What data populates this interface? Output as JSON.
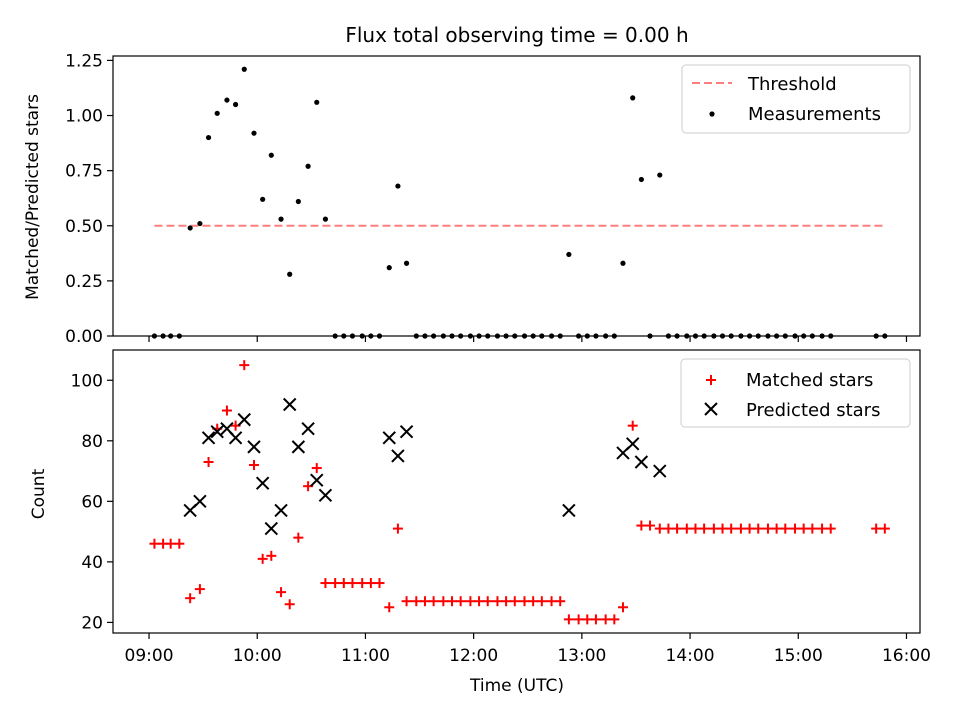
{
  "chart_data": [
    {
      "type": "scatter",
      "title": "Flux total observing time = 0.00 h",
      "xlabel": "",
      "ylabel": "Matched/Predicted stars",
      "xlim": [
        8.667,
        16.125
      ],
      "ylim": [
        0.0,
        1.27
      ],
      "yticks": [
        0.0,
        0.25,
        0.5,
        0.75,
        1.0,
        1.25
      ],
      "ytick_labels": [
        "0.00",
        "0.25",
        "0.50",
        "0.75",
        "1.00",
        "1.25"
      ],
      "threshold": {
        "name": "Threshold",
        "value": 0.5,
        "x_range": [
          9.05,
          15.8
        ],
        "color": "#ff7f7f"
      },
      "legend": [
        "Threshold",
        "Measurements"
      ],
      "legend_position": "top-right",
      "series": [
        {
          "name": "Measurements",
          "color": "#000000",
          "x": [
            9.05,
            9.13,
            9.2,
            9.28,
            9.38,
            9.47,
            9.55,
            9.63,
            9.72,
            9.8,
            9.88,
            9.97,
            10.05,
            10.13,
            10.22,
            10.3,
            10.38,
            10.47,
            10.55,
            10.63,
            10.72,
            10.8,
            10.88,
            10.97,
            11.05,
            11.13,
            11.22,
            11.3,
            11.38,
            11.47,
            11.55,
            11.63,
            11.72,
            11.8,
            11.88,
            11.97,
            12.05,
            12.13,
            12.22,
            12.3,
            12.38,
            12.47,
            12.55,
            12.63,
            12.72,
            12.8,
            12.88,
            12.97,
            13.05,
            13.13,
            13.22,
            13.3,
            13.38,
            13.47,
            13.55,
            13.63,
            13.72,
            13.8,
            13.88,
            13.97,
            14.05,
            14.13,
            14.22,
            14.3,
            14.38,
            14.47,
            14.55,
            14.63,
            14.72,
            14.8,
            14.88,
            14.97,
            15.05,
            15.13,
            15.22,
            15.3,
            15.72,
            15.8
          ],
          "y": [
            0.0,
            0.0,
            0.0,
            0.0,
            0.49,
            0.51,
            0.9,
            1.01,
            1.07,
            1.05,
            1.21,
            0.92,
            0.62,
            0.82,
            0.53,
            0.28,
            0.61,
            0.77,
            1.06,
            0.53,
            0.0,
            0.0,
            0.0,
            0.0,
            0.0,
            0.0,
            0.31,
            0.68,
            0.33,
            0.0,
            0.0,
            0.0,
            0.0,
            0.0,
            0.0,
            0.0,
            0.0,
            0.0,
            0.0,
            0.0,
            0.0,
            0.0,
            0.0,
            0.0,
            0.0,
            0.0,
            0.37,
            0.0,
            0.0,
            0.0,
            0.0,
            0.0,
            0.33,
            1.08,
            0.71,
            0.0,
            0.73,
            0.0,
            0.0,
            0.0,
            0.0,
            0.0,
            0.0,
            0.0,
            0.0,
            0.0,
            0.0,
            0.0,
            0.0,
            0.0,
            0.0,
            0.0,
            0.0,
            0.0,
            0.0,
            0.0,
            0.0,
            0.0
          ]
        }
      ]
    },
    {
      "type": "scatter",
      "title": "",
      "xlabel": "Time (UTC)",
      "ylabel": "Count",
      "xlim": [
        8.667,
        16.125
      ],
      "ylim": [
        16.5,
        110
      ],
      "yticks": [
        20,
        40,
        60,
        80,
        100
      ],
      "ytick_labels": [
        "20",
        "40",
        "60",
        "80",
        "100"
      ],
      "xticks": [
        9,
        10,
        11,
        12,
        13,
        14,
        15,
        16
      ],
      "xtick_labels": [
        "09:00",
        "10:00",
        "11:00",
        "12:00",
        "13:00",
        "14:00",
        "15:00",
        "16:00"
      ],
      "legend": [
        "Matched stars",
        "Predicted stars"
      ],
      "legend_position": "top-right",
      "series": [
        {
          "name": "Matched stars",
          "marker": "plus",
          "color": "#ff0000",
          "x": [
            9.05,
            9.13,
            9.2,
            9.28,
            9.38,
            9.47,
            9.55,
            9.63,
            9.72,
            9.8,
            9.88,
            9.97,
            10.05,
            10.13,
            10.22,
            10.3,
            10.38,
            10.47,
            10.55,
            10.63,
            10.72,
            10.8,
            10.88,
            10.97,
            11.05,
            11.13,
            11.22,
            11.3,
            11.38,
            11.47,
            11.55,
            11.63,
            11.72,
            11.8,
            11.88,
            11.97,
            12.05,
            12.13,
            12.22,
            12.3,
            12.38,
            12.47,
            12.55,
            12.63,
            12.72,
            12.8,
            12.88,
            12.97,
            13.05,
            13.13,
            13.22,
            13.3,
            13.38,
            13.47,
            13.55,
            13.63,
            13.72,
            13.8,
            13.88,
            13.97,
            14.05,
            14.13,
            14.22,
            14.3,
            14.38,
            14.47,
            14.55,
            14.63,
            14.72,
            14.8,
            14.88,
            14.97,
            15.05,
            15.13,
            15.22,
            15.3,
            15.72,
            15.8
          ],
          "y": [
            46,
            46,
            46,
            46,
            28,
            31,
            73,
            84,
            90,
            85,
            105,
            72,
            41,
            42,
            30,
            26,
            48,
            65,
            71,
            33,
            33,
            33,
            33,
            33,
            33,
            33,
            25,
            51,
            27,
            27,
            27,
            27,
            27,
            27,
            27,
            27,
            27,
            27,
            27,
            27,
            27,
            27,
            27,
            27,
            27,
            27,
            21,
            21,
            21,
            21,
            21,
            21,
            25,
            85,
            52,
            52,
            51,
            51,
            51,
            51,
            51,
            51,
            51,
            51,
            51,
            51,
            51,
            51,
            51,
            51,
            51,
            51,
            51,
            51,
            51,
            51,
            51,
            51
          ]
        },
        {
          "name": "Predicted stars",
          "marker": "x",
          "color": "#000000",
          "x": [
            9.38,
            9.47,
            9.55,
            9.63,
            9.72,
            9.8,
            9.88,
            9.97,
            10.05,
            10.13,
            10.22,
            10.3,
            10.38,
            10.47,
            10.55,
            10.63,
            11.22,
            11.3,
            11.38,
            12.88,
            13.38,
            13.47,
            13.55,
            13.72
          ],
          "y": [
            57,
            60,
            81,
            83,
            84,
            81,
            87,
            78,
            66,
            51,
            57,
            92,
            78,
            84,
            67,
            62,
            81,
            75,
            83,
            57,
            76,
            79,
            73,
            70
          ]
        }
      ]
    }
  ]
}
